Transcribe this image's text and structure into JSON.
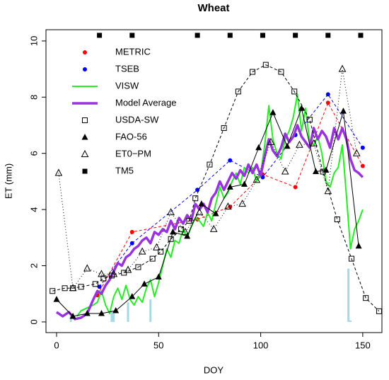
{
  "chart_data": {
    "type": "line",
    "title": "Wheat",
    "x_label": "DOY",
    "y_label": "ET (mm)",
    "xlim": [
      -5.2,
      159.4
    ],
    "ylim": [
      -0.38,
      10.4
    ],
    "xticks": [
      0,
      50,
      100,
      150
    ],
    "yticks": [
      0,
      2,
      4,
      6,
      8,
      10
    ],
    "legend": "top-left",
    "series": [
      {
        "name": "METRIC",
        "color": "#ff0000",
        "marker": "circle",
        "line": "dashed",
        "lwd": 1,
        "x": [
          20,
          37,
          69,
          85,
          101,
          117,
          133,
          150
        ],
        "values": [
          0.95,
          3.2,
          3.65,
          4.1,
          5.25,
          4.8,
          7.8,
          5.55
        ]
      },
      {
        "name": "TSEB",
        "color": "#0000ff",
        "marker": "circle",
        "line": "dashed",
        "lwd": 1,
        "x": [
          21,
          37,
          69,
          85,
          101,
          117,
          133,
          150
        ],
        "values": [
          1.25,
          2.8,
          4.7,
          5.75,
          5.15,
          6.65,
          8.1,
          6.2
        ]
      },
      {
        "name": "VISW",
        "color": "#22ee22",
        "line": "solid",
        "lwd": 2,
        "x": [
          10,
          12,
          15,
          18,
          20,
          22,
          24,
          26,
          28,
          30,
          32,
          34,
          36,
          38,
          40,
          42,
          44,
          46,
          48,
          50,
          52,
          54,
          56,
          58,
          60,
          62,
          64,
          66,
          68,
          70,
          72,
          74,
          76,
          78,
          80,
          82,
          84,
          86,
          88,
          90,
          92,
          94,
          96,
          98,
          100,
          102,
          104,
          106,
          108,
          110,
          112,
          114,
          116,
          118,
          120,
          122,
          124,
          126,
          128,
          130,
          132,
          134,
          136,
          138,
          140,
          142,
          144,
          146,
          148,
          150
        ],
        "values": [
          0.2,
          0.4,
          0.5,
          0.6,
          0.7,
          1.1,
          0.6,
          0.3,
          0.9,
          1.2,
          0.8,
          1.3,
          0.8,
          0.6,
          0.9,
          0.7,
          1.2,
          1.5,
          0.9,
          1.4,
          2.0,
          2.6,
          2.3,
          2.9,
          2.8,
          3.3,
          3.0,
          3.4,
          3.7,
          3.6,
          3.4,
          3.9,
          3.6,
          4.2,
          4.8,
          4.4,
          4.6,
          5.0,
          5.3,
          4.9,
          5.5,
          5.3,
          5.5,
          5.0,
          5.3,
          6.3,
          7.7,
          6.5,
          6.0,
          5.8,
          6.5,
          6.8,
          7.3,
          8.1,
          6.8,
          7.6,
          6.4,
          6.3,
          6.6,
          6.0,
          5.0,
          4.8,
          5.3,
          5.5,
          6.3,
          4.5,
          2.6,
          3.3,
          3.6,
          4.0
        ]
      },
      {
        "name": "Model Average",
        "color": "#9933dd",
        "line": "solid",
        "lwd": 3.5,
        "x": [
          0,
          3,
          6,
          9,
          12,
          15,
          18,
          20,
          22,
          24,
          26,
          28,
          30,
          32,
          34,
          36,
          38,
          40,
          42,
          44,
          46,
          48,
          50,
          52,
          54,
          56,
          58,
          60,
          62,
          64,
          66,
          68,
          70,
          72,
          74,
          76,
          78,
          80,
          82,
          84,
          86,
          88,
          90,
          92,
          94,
          96,
          98,
          100,
          102,
          104,
          106,
          108,
          110,
          112,
          114,
          116,
          118,
          120,
          122,
          124,
          126,
          128,
          130,
          132,
          134,
          136,
          138,
          140,
          142,
          144,
          146,
          148,
          150
        ],
        "values": [
          0.35,
          0.2,
          0.35,
          0.1,
          0.15,
          0.3,
          0.8,
          1.1,
          1.0,
          1.3,
          1.5,
          1.8,
          2.1,
          2.0,
          2.3,
          2.4,
          2.6,
          2.7,
          2.9,
          3.0,
          2.8,
          3.2,
          3.1,
          3.3,
          3.2,
          3.6,
          3.3,
          3.7,
          3.5,
          3.8,
          3.6,
          4.2,
          4.0,
          4.2,
          3.9,
          4.4,
          4.6,
          5.0,
          4.7,
          5.0,
          5.3,
          5.1,
          5.4,
          5.2,
          5.6,
          5.3,
          5.6,
          5.2,
          5.9,
          6.5,
          6.1,
          5.9,
          6.2,
          6.7,
          6.4,
          6.6,
          7.0,
          6.6,
          6.4,
          6.2,
          6.9,
          6.5,
          6.8,
          6.6,
          6.2,
          6.9,
          6.5,
          6.9,
          6.5,
          5.8,
          5.4,
          5.3,
          5.15
        ]
      },
      {
        "name": "USDA-SW",
        "color": "#000000",
        "marker": "square-open",
        "line": "dashed",
        "lwd": 1,
        "x": [
          -2,
          4,
          8,
          12,
          19,
          23,
          27,
          33,
          40,
          47,
          51,
          56,
          61,
          65,
          68,
          75,
          82,
          89,
          96,
          102.5,
          110,
          116.5,
          124,
          130.5,
          137.5,
          144.5,
          151.5,
          158
        ],
        "values": [
          1.1,
          1.2,
          1.2,
          1.25,
          1.35,
          1.55,
          1.65,
          1.75,
          1.95,
          2.25,
          2.5,
          2.95,
          3.3,
          3.6,
          4.4,
          5.6,
          6.9,
          8.2,
          8.9,
          9.15,
          8.9,
          8.2,
          7.2,
          5.35,
          3.65,
          2.25,
          0.85,
          0.38
        ]
      },
      {
        "name": "FAO-56",
        "color": "#000000",
        "marker": "triangle",
        "line": "solid",
        "lwd": 1,
        "x": [
          0,
          8,
          15,
          22,
          29,
          37,
          43,
          50,
          57,
          64,
          71,
          78,
          85,
          92,
          99,
          106,
          113,
          120,
          127,
          132,
          140.5,
          148
        ],
        "values": [
          0.8,
          0.2,
          0.3,
          0.3,
          0.4,
          0.9,
          1.35,
          1.6,
          3.2,
          3.05,
          4.2,
          3.85,
          4.8,
          4.9,
          6.2,
          7.45,
          6.25,
          7.6,
          5.35,
          5.4,
          7.5,
          2.7
        ]
      },
      {
        "name": "ET0−PM",
        "color": "#000000",
        "marker": "triangle-open",
        "line": "dotted",
        "lwd": 1,
        "x": [
          1,
          8,
          15,
          22,
          28,
          35,
          42,
          49,
          56,
          63,
          70,
          77,
          84,
          91,
          98,
          105,
          112,
          119,
          126,
          133,
          140,
          147
        ],
        "values": [
          5.3,
          1.2,
          1.9,
          1.7,
          1.7,
          1.85,
          2.5,
          2.65,
          3.9,
          3.2,
          3.9,
          3.3,
          4.1,
          4.2,
          5.05,
          6.4,
          5.35,
          6.3,
          6.35,
          4.65,
          9.0,
          6.0
        ]
      },
      {
        "name": "TM5",
        "color": "#000000",
        "marker": "square",
        "x": [
          21,
          37,
          69,
          85,
          101,
          117,
          133,
          149
        ],
        "values": [
          10.2,
          10.2,
          10.2,
          10.2,
          10.2,
          10.2,
          10.2,
          10.2
        ]
      }
    ],
    "bars": {
      "color": "#a6d8e6",
      "x": [
        7,
        27,
        28,
        35,
        46,
        143,
        144
      ],
      "values": [
        0.2,
        0.4,
        0.3,
        0.7,
        0.8,
        1.9,
        0.05
      ]
    }
  }
}
